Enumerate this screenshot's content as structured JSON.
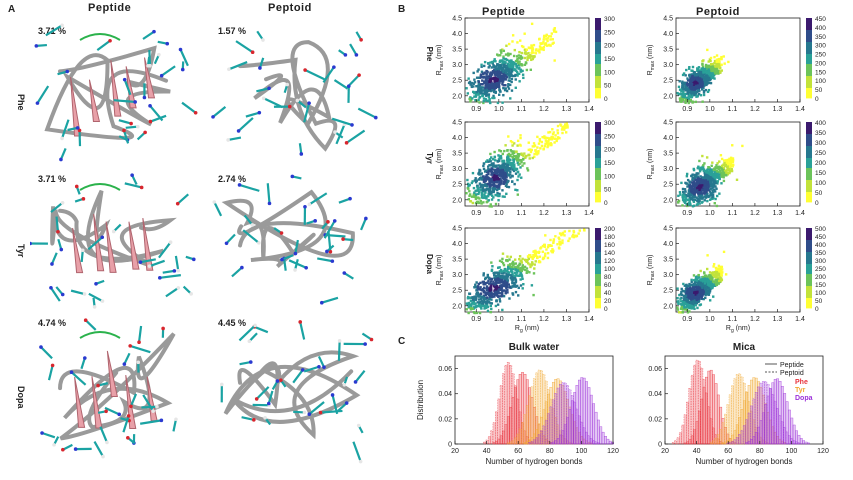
{
  "panels": {
    "A": {
      "letter": "A",
      "columns": [
        "Peptide",
        "Peptoid"
      ],
      "rows": [
        {
          "label": "Phe",
          "peptide_pct": "3.71 %",
          "peptoid_pct": "1.57 %"
        },
        {
          "label": "Tyr",
          "peptide_pct": "3.71 %",
          "peptoid_pct": "2.74 %"
        },
        {
          "label": "Dopa",
          "peptide_pct": "4.74 %",
          "peptoid_pct": "4.45 %"
        }
      ]
    },
    "B": {
      "letter": "B",
      "columns": [
        "Peptide",
        "Peptoid"
      ],
      "row_labels": [
        "Phe",
        "Tyr",
        "Dopa"
      ],
      "ylabel_main": "R",
      "ylabel_sub": "max",
      "ylabel_unit": " (nm)",
      "xlabel_main": "R",
      "xlabel_sub": "g",
      "xlabel_unit": " (nm)",
      "y_ticks": [
        "2.0",
        "2.5",
        "3.0",
        "3.5",
        "4.0",
        "4.5"
      ],
      "x_ticks": [
        "0.9",
        "1.0",
        "1.1",
        "1.2",
        "1.3",
        "1.4"
      ],
      "colorbars": [
        [
          "300",
          "250",
          "200",
          "150",
          "100",
          "50",
          "0"
        ],
        [
          "450",
          "400",
          "350",
          "300",
          "250",
          "200",
          "150",
          "100",
          "50",
          "0"
        ],
        [
          "300",
          "250",
          "200",
          "150",
          "100",
          "50",
          "0"
        ],
        [
          "400",
          "350",
          "300",
          "250",
          "200",
          "150",
          "100",
          "50",
          "0"
        ],
        [
          "200",
          "180",
          "160",
          "140",
          "120",
          "100",
          "80",
          "60",
          "40",
          "20",
          "0"
        ],
        [
          "500",
          "450",
          "400",
          "350",
          "300",
          "250",
          "200",
          "150",
          "100",
          "50",
          "0"
        ]
      ],
      "colors": {
        "low": "#ffff33",
        "mid": "#2aa198",
        "high": "#3b1a6e"
      }
    },
    "C": {
      "letter": "C",
      "titles": [
        "Bulk water",
        "Mica"
      ],
      "ylabel": "Distribution",
      "xlabel": "Number of hydrogen bonds",
      "legend_lines": [
        {
          "label": "Peptide",
          "style": "solid"
        },
        {
          "label": "Peptoid",
          "style": "dashed"
        }
      ],
      "legend_colors": [
        {
          "label": "Phe",
          "color": "#e8323c"
        },
        {
          "label": "Tyr",
          "color": "#f0a830"
        },
        {
          "label": "Dopa",
          "color": "#9b30d9"
        }
      ]
    }
  },
  "chart_data": [
    {
      "type": "histogram",
      "title": "Bulk water",
      "xlabel": "Number of hydrogen bonds",
      "ylabel": "Distribution",
      "xlim": [
        20,
        120
      ],
      "ylim": [
        0,
        0.07
      ],
      "x_ticks": [
        20,
        40,
        60,
        80,
        100,
        120
      ],
      "y_ticks": [
        0,
        0.02,
        0.04,
        0.06
      ],
      "series": [
        {
          "name": "Phe",
          "color": "#e8323c",
          "style": "dashed",
          "mean": 53,
          "sd": 5.5,
          "peak": 0.065
        },
        {
          "name": "Phe",
          "color": "#e8323c",
          "style": "solid",
          "mean": 62,
          "sd": 6.5,
          "peak": 0.057
        },
        {
          "name": "Tyr",
          "color": "#f0a830",
          "style": "dashed",
          "mean": 73,
          "sd": 7,
          "peak": 0.059
        },
        {
          "name": "Tyr",
          "color": "#f0a830",
          "style": "solid",
          "mean": 84,
          "sd": 7.5,
          "peak": 0.052
        },
        {
          "name": "Dopa",
          "color": "#9b30d9",
          "style": "dashed",
          "mean": 88,
          "sd": 8,
          "peak": 0.049
        },
        {
          "name": "Dopa",
          "color": "#9b30d9",
          "style": "solid",
          "mean": 100,
          "sd": 7,
          "peak": 0.053
        }
      ]
    },
    {
      "type": "histogram",
      "title": "Mica",
      "xlabel": "Number of hydrogen bonds",
      "ylabel": "",
      "xlim": [
        20,
        120
      ],
      "ylim": [
        0,
        0.07
      ],
      "x_ticks": [
        20,
        40,
        60,
        80,
        100,
        120
      ],
      "y_ticks": [
        0,
        0.02,
        0.04,
        0.06
      ],
      "series": [
        {
          "name": "Phe",
          "color": "#e8323c",
          "style": "dashed",
          "mean": 40,
          "sd": 5.5,
          "peak": 0.067
        },
        {
          "name": "Phe",
          "color": "#e8323c",
          "style": "solid",
          "mean": 48,
          "sd": 5.5,
          "peak": 0.059
        },
        {
          "name": "Tyr",
          "color": "#f0a830",
          "style": "dashed",
          "mean": 66,
          "sd": 6.5,
          "peak": 0.056
        },
        {
          "name": "Tyr",
          "color": "#f0a830",
          "style": "solid",
          "mean": 76,
          "sd": 7,
          "peak": 0.053
        },
        {
          "name": "Dopa",
          "color": "#9b30d9",
          "style": "dashed",
          "mean": 82,
          "sd": 8,
          "peak": 0.05
        },
        {
          "name": "Dopa",
          "color": "#9b30d9",
          "style": "solid",
          "mean": 90,
          "sd": 7,
          "peak": 0.052
        }
      ]
    }
  ]
}
